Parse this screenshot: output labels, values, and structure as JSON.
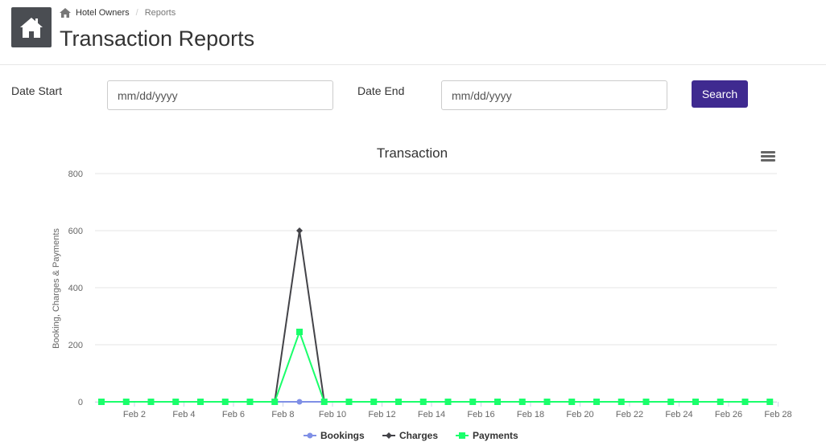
{
  "header": {
    "breadcrumb": {
      "home_label": "Hotel Owners",
      "current": "Reports"
    },
    "title": "Transaction Reports"
  },
  "filters": {
    "date_start_label": "Date Start",
    "date_start_placeholder": "mm/dd/yyyy",
    "date_end_label": "Date End",
    "date_end_placeholder": "mm/dd/yyyy",
    "search_label": "Search"
  },
  "colors": {
    "accent": "#3f2a90",
    "bookings": "#7f8fe6",
    "charges": "#434348",
    "payments": "#1aff6b"
  },
  "chart_data": {
    "type": "line",
    "title": "Transaction",
    "ylabel": "Booking, Charges & Payments",
    "xlabel": "",
    "ylim": [
      0,
      800
    ],
    "yticks": [
      0,
      200,
      400,
      600,
      800
    ],
    "x": [
      "Feb 1",
      "Feb 2",
      "Feb 3",
      "Feb 4",
      "Feb 5",
      "Feb 6",
      "Feb 7",
      "Feb 8",
      "Feb 9",
      "Feb 10",
      "Feb 11",
      "Feb 12",
      "Feb 13",
      "Feb 14",
      "Feb 15",
      "Feb 16",
      "Feb 17",
      "Feb 18",
      "Feb 19",
      "Feb 20",
      "Feb 21",
      "Feb 22",
      "Feb 23",
      "Feb 24",
      "Feb 25",
      "Feb 26",
      "Feb 27",
      "Feb 28"
    ],
    "xticks": [
      "Feb 2",
      "Feb 4",
      "Feb 6",
      "Feb 8",
      "Feb 10",
      "Feb 12",
      "Feb 14",
      "Feb 16",
      "Feb 18",
      "Feb 20",
      "Feb 22",
      "Feb 24",
      "Feb 26",
      "Feb 28"
    ],
    "series": [
      {
        "name": "Bookings",
        "values": [
          0,
          0,
          0,
          0,
          0,
          0,
          0,
          0,
          0,
          0,
          0,
          0,
          0,
          0,
          0,
          0,
          0,
          0,
          0,
          0,
          0,
          0,
          0,
          0,
          0,
          0,
          0,
          0
        ]
      },
      {
        "name": "Charges",
        "values": [
          0,
          0,
          0,
          0,
          0,
          0,
          0,
          0,
          600,
          0,
          0,
          0,
          0,
          0,
          0,
          0,
          0,
          0,
          0,
          0,
          0,
          0,
          0,
          0,
          0,
          0,
          0,
          0
        ]
      },
      {
        "name": "Payments",
        "values": [
          0,
          0,
          0,
          0,
          0,
          0,
          0,
          0,
          245,
          0,
          0,
          0,
          0,
          0,
          0,
          0,
          0,
          0,
          0,
          0,
          0,
          0,
          0,
          0,
          0,
          0,
          0,
          0
        ]
      }
    ],
    "grid": true,
    "legend_position": "bottom-center"
  }
}
